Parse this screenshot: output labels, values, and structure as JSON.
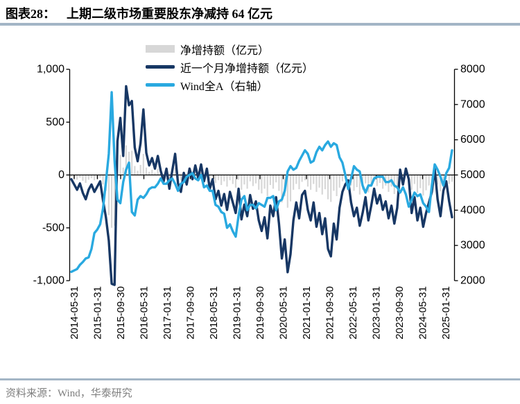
{
  "header": {
    "figure_label": "图表28：",
    "title": "上期二级市场重要股东净减持 64 亿元"
  },
  "footer": {
    "source": "资料来源：Wind，华泰研究"
  },
  "colors": {
    "bar_gray": "#d7d7d7",
    "navy": "#173764",
    "light_blue": "#29a9e0",
    "axis_black": "#000000",
    "divider_blue_gray": "#a3b5c6",
    "footer_gray": "#7f7f7f"
  },
  "legend": {
    "items": [
      {
        "label": "净增持额（亿元）",
        "type": "bar",
        "color": "#d7d7d7"
      },
      {
        "label": "近一个月净增持额（亿元）",
        "type": "line",
        "color": "#173764"
      },
      {
        "label": "Wind全A（右轴）",
        "type": "line",
        "color": "#29a9e0"
      }
    ]
  },
  "chart_data": {
    "type": "composite",
    "title": "上期二级市场重要股东净减持 64 亿元",
    "x_freq": "monthly",
    "x_start": "2014-04",
    "x_end": "2025-04",
    "x_tick_labels": [
      "2014-05-31",
      "2015-01-31",
      "2015-09-30",
      "2016-05-31",
      "2017-01-31",
      "2017-09-30",
      "2018-05-31",
      "2019-01-31",
      "2019-09-30",
      "2020-05-31",
      "2021-01-31",
      "2021-09-30",
      "2022-05-31",
      "2023-01-31",
      "2023-09-30",
      "2024-05-31",
      "2025-01-31"
    ],
    "left_axis": {
      "range": [
        -1000,
        1000
      ],
      "tick_values": [
        1000,
        500,
        0,
        -500,
        -1000
      ],
      "tick_labels": [
        "1,000",
        "500",
        "0",
        "-500",
        "-1,000"
      ]
    },
    "right_axis": {
      "range": [
        2000,
        8000
      ],
      "tick_values": [
        8000,
        7000,
        6000,
        5000,
        4000,
        3000,
        2000
      ],
      "tick_labels": [
        "8000",
        "7000",
        "6000",
        "5000",
        "4000",
        "3000",
        "2000"
      ]
    },
    "grid": false,
    "legend_position": "top",
    "series": [
      {
        "name": "净增持额（亿元）",
        "type": "bar",
        "axis": "left",
        "color": "#d7d7d7",
        "values": [
          -15,
          -30,
          -45,
          -25,
          -55,
          -75,
          -45,
          -30,
          -50,
          -40,
          -25,
          -90,
          -150,
          -380,
          -500,
          -480,
          120,
          190,
          70,
          280,
          220,
          230,
          85,
          40,
          95,
          200,
          70,
          30,
          50,
          20,
          60,
          15,
          -20,
          20,
          -40,
          15,
          70,
          -25,
          -50,
          8,
          -30,
          20,
          -15,
          30,
          -10,
          30,
          -20,
          20,
          -45,
          -15,
          -75,
          -50,
          -95,
          -60,
          -110,
          -50,
          -85,
          -120,
          -45,
          -140,
          -90,
          -130,
          -60,
          -105,
          -80,
          -140,
          -175,
          -130,
          -200,
          -95,
          -130,
          -70,
          -150,
          -260,
          -200,
          -310,
          -250,
          -140,
          -85,
          -135,
          -65,
          -50,
          -110,
          -140,
          -85,
          -160,
          -120,
          -185,
          -135,
          -230,
          -255,
          -150,
          -200,
          -120,
          -60,
          -35,
          -20,
          -100,
          -150,
          -115,
          -185,
          -140,
          -80,
          -165,
          -110,
          -55,
          -105,
          -75,
          -130,
          -100,
          -160,
          -110,
          -180,
          -125,
          20,
          -35,
          25,
          -20,
          -140,
          -85,
          -170,
          -125,
          -195,
          -145,
          -100,
          -65,
          25,
          -90,
          -155,
          -50,
          -20,
          -85,
          -64
        ]
      },
      {
        "name": "近一个月净增持额（亿元）",
        "type": "line",
        "axis": "left",
        "color": "#173764",
        "values": [
          -40,
          -90,
          -140,
          -80,
          -170,
          -230,
          -140,
          -90,
          -160,
          -110,
          -60,
          -240,
          -400,
          -620,
          -1030,
          -1040,
          320,
          540,
          180,
          840,
          660,
          700,
          260,
          130,
          300,
          620,
          210,
          90,
          160,
          60,
          180,
          40,
          -60,
          60,
          -130,
          40,
          200,
          -80,
          -160,
          20,
          -90,
          60,
          -40,
          90,
          -30,
          100,
          -60,
          60,
          -130,
          -40,
          -230,
          -150,
          -290,
          -180,
          -330,
          -160,
          -260,
          -360,
          -130,
          -420,
          -280,
          -390,
          -190,
          -320,
          -250,
          -430,
          -530,
          -400,
          -600,
          -290,
          -390,
          -210,
          -460,
          -790,
          -610,
          -920,
          -750,
          -430,
          -260,
          -410,
          -190,
          -150,
          -330,
          -430,
          -260,
          -490,
          -360,
          -560,
          -410,
          -700,
          -770,
          -460,
          -610,
          -310,
          -160,
          -90,
          -50,
          -260,
          -390,
          -310,
          -480,
          -360,
          -210,
          -430,
          -290,
          -130,
          -270,
          -190,
          -330,
          -250,
          -410,
          -290,
          -460,
          -310,
          50,
          -90,
          60,
          -40,
          -360,
          -210,
          -430,
          -310,
          -490,
          -360,
          -260,
          -160,
          60,
          -230,
          -390,
          -150,
          -60,
          -250,
          -400
        ]
      },
      {
        "name": "Wind全A（右轴）",
        "type": "line",
        "axis": "right",
        "color": "#29a9e0",
        "values": [
          2250,
          2290,
          2330,
          2450,
          2530,
          2630,
          2660,
          2900,
          3350,
          3450,
          3600,
          4050,
          4800,
          5600,
          7350,
          5400,
          4300,
          4200,
          4800,
          5150,
          5350,
          3950,
          3850,
          4300,
          4400,
          4350,
          4450,
          4600,
          4650,
          4650,
          4750,
          4900,
          4750,
          4750,
          4850,
          4900,
          4750,
          4550,
          4750,
          4800,
          4950,
          5000,
          5050,
          4900,
          4850,
          5000,
          4650,
          4700,
          4550,
          4550,
          4150,
          4100,
          3950,
          3900,
          3500,
          3600,
          3400,
          3250,
          3850,
          4300,
          4400,
          4000,
          4150,
          4150,
          4050,
          4200,
          4150,
          4100,
          4350,
          4350,
          4400,
          4000,
          4250,
          4300,
          4550,
          5100,
          5250,
          5150,
          5200,
          5400,
          5550,
          5700,
          5600,
          5350,
          5400,
          5650,
          5800,
          5700,
          5850,
          5950,
          5800,
          5900,
          5850,
          5500,
          5350,
          5000,
          4600,
          4900,
          5250,
          5150,
          5100,
          4700,
          4500,
          4700,
          4700,
          4900,
          4950,
          4950,
          4950,
          4800,
          4800,
          4850,
          4700,
          4650,
          4500,
          4650,
          4450,
          4100,
          4300,
          4500,
          4400,
          4450,
          4200,
          4100,
          3950,
          4700,
          5300,
          5150,
          4950,
          4700,
          5050,
          5200,
          5700
        ]
      }
    ]
  }
}
